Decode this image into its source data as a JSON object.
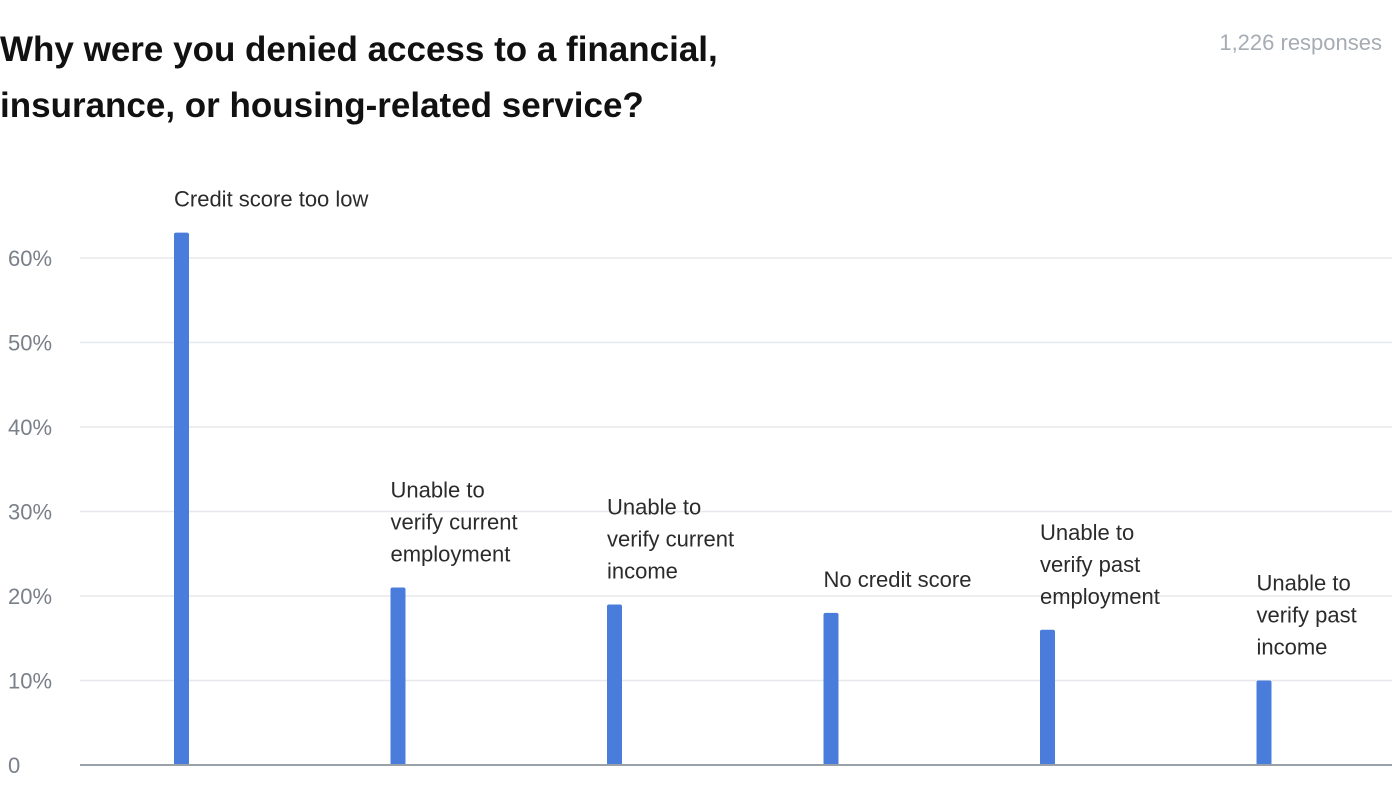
{
  "header": {
    "title": "Why were you denied access to a financial, insurance, or housing-related service?",
    "responses": "1,226 responses"
  },
  "colors": {
    "bar": "#4a7ddb",
    "grid": "#e6e8eb",
    "baseline": "#9aa0a8"
  },
  "chart_data": {
    "type": "bar",
    "title": "Why were you denied access to a financial, insurance, or housing-related service?",
    "categories": [
      "Credit score too low",
      "Unable to verify current employment",
      "Unable to verify current income",
      "No credit score",
      "Unable to verify past employment",
      "Unable to verify past income"
    ],
    "label_lines": [
      [
        "Credit score too low"
      ],
      [
        "Unable to",
        "verify current",
        "employment"
      ],
      [
        "Unable to",
        "verify current",
        "income"
      ],
      [
        "No credit score"
      ],
      [
        "Unable to",
        "verify past",
        "employment"
      ],
      [
        "Unable to",
        "verify past",
        "income"
      ]
    ],
    "values": [
      63,
      21,
      19,
      18,
      16,
      10
    ],
    "ylim": [
      0,
      60
    ],
    "yticks": [
      0,
      10,
      20,
      30,
      40,
      50,
      60
    ],
    "ytick_labels": [
      "0",
      "10%",
      "20%",
      "30%",
      "40%",
      "50%",
      "60%"
    ],
    "xlabel": "",
    "ylabel": "",
    "grid": true
  }
}
